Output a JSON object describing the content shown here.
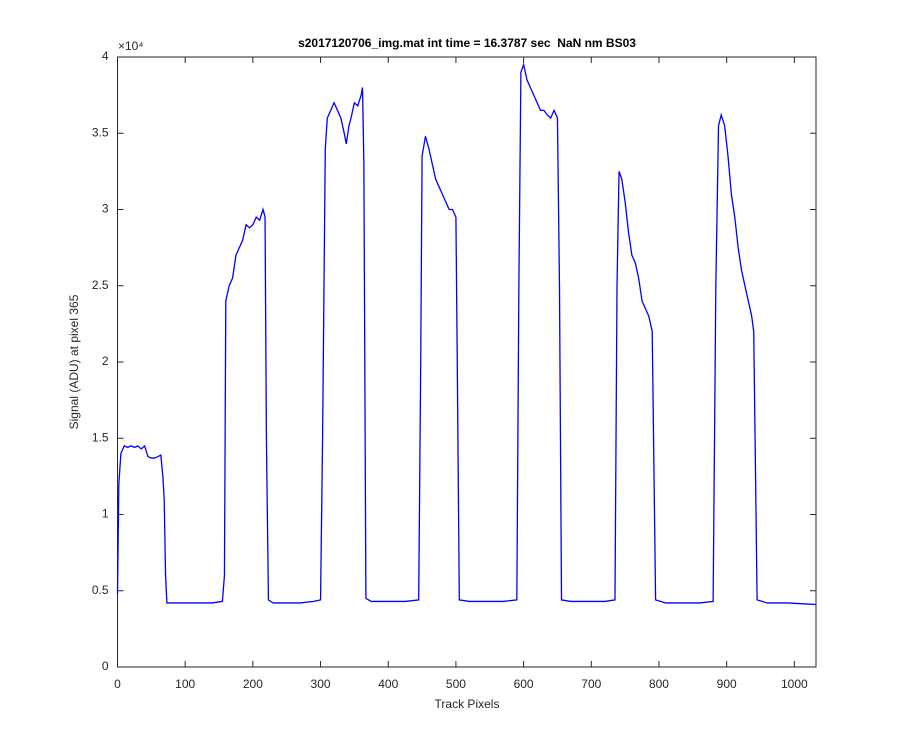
{
  "chart_data": {
    "type": "line",
    "title": "s2017120706_img.mat int time = 16.3787 sec  NaN nm BS03",
    "x_label": "Track Pixels",
    "y_label": "Signal (ADU) at pixel 365",
    "y_exponent": "×10⁴",
    "xlim": [
      0,
      1032
    ],
    "ylim": [
      0,
      4
    ],
    "xticks": [
      0,
      100,
      200,
      300,
      400,
      500,
      600,
      700,
      800,
      900,
      1000
    ],
    "yticks": [
      0,
      0.5,
      1,
      1.5,
      2,
      2.5,
      3,
      3.5,
      4
    ],
    "grid": false,
    "x": [
      0,
      2,
      5,
      10,
      15,
      20,
      25,
      30,
      35,
      40,
      45,
      50,
      55,
      60,
      64,
      67,
      69,
      71,
      73,
      80,
      100,
      120,
      140,
      155,
      158,
      160,
      165,
      170,
      175,
      180,
      185,
      190,
      195,
      200,
      205,
      210,
      215,
      218,
      220,
      223,
      230,
      250,
      270,
      290,
      300,
      303,
      307,
      310,
      315,
      320,
      325,
      330,
      335,
      338,
      342,
      345,
      350,
      355,
      360,
      362,
      364,
      367,
      375,
      400,
      425,
      445,
      448,
      450,
      455,
      460,
      465,
      470,
      475,
      480,
      485,
      490,
      495,
      500,
      502,
      505,
      520,
      545,
      570,
      590,
      593,
      596,
      600,
      605,
      610,
      615,
      620,
      625,
      630,
      635,
      640,
      645,
      650,
      653,
      656,
      670,
      695,
      720,
      735,
      738,
      741,
      745,
      750,
      755,
      760,
      765,
      770,
      775,
      780,
      785,
      790,
      792,
      795,
      810,
      835,
      860,
      880,
      884,
      888,
      892,
      897,
      902,
      907,
      912,
      917,
      922,
      927,
      932,
      937,
      940,
      942,
      945,
      960,
      990,
      1010,
      1032
    ],
    "series": [
      {
        "name": "signal",
        "color": "#0000ff",
        "values": [
          0.48,
          1.2,
          1.4,
          1.45,
          1.44,
          1.45,
          1.44,
          1.45,
          1.43,
          1.45,
          1.38,
          1.37,
          1.37,
          1.38,
          1.39,
          1.25,
          1.1,
          0.6,
          0.42,
          0.42,
          0.42,
          0.42,
          0.42,
          0.43,
          0.6,
          2.4,
          2.5,
          2.55,
          2.7,
          2.75,
          2.8,
          2.9,
          2.88,
          2.9,
          2.95,
          2.93,
          3.0,
          2.95,
          1.5,
          0.44,
          0.42,
          0.42,
          0.42,
          0.43,
          0.44,
          1.5,
          3.4,
          3.6,
          3.65,
          3.7,
          3.65,
          3.6,
          3.5,
          3.43,
          3.55,
          3.6,
          3.7,
          3.68,
          3.75,
          3.8,
          3.3,
          0.45,
          0.43,
          0.43,
          0.43,
          0.44,
          2.0,
          3.35,
          3.48,
          3.4,
          3.3,
          3.2,
          3.15,
          3.1,
          3.05,
          3.0,
          3.0,
          2.95,
          2.0,
          0.44,
          0.43,
          0.43,
          0.43,
          0.44,
          2.5,
          3.9,
          3.95,
          3.85,
          3.8,
          3.75,
          3.7,
          3.65,
          3.65,
          3.62,
          3.6,
          3.65,
          3.6,
          2.5,
          0.44,
          0.43,
          0.43,
          0.43,
          0.44,
          2.5,
          3.25,
          3.2,
          3.05,
          2.85,
          2.7,
          2.65,
          2.55,
          2.4,
          2.35,
          2.3,
          2.2,
          1.5,
          0.44,
          0.42,
          0.42,
          0.42,
          0.43,
          2.5,
          3.55,
          3.62,
          3.55,
          3.35,
          3.1,
          2.95,
          2.75,
          2.6,
          2.5,
          2.4,
          2.3,
          2.2,
          1.5,
          0.44,
          0.42,
          0.42,
          0.415,
          0.41
        ]
      }
    ]
  }
}
